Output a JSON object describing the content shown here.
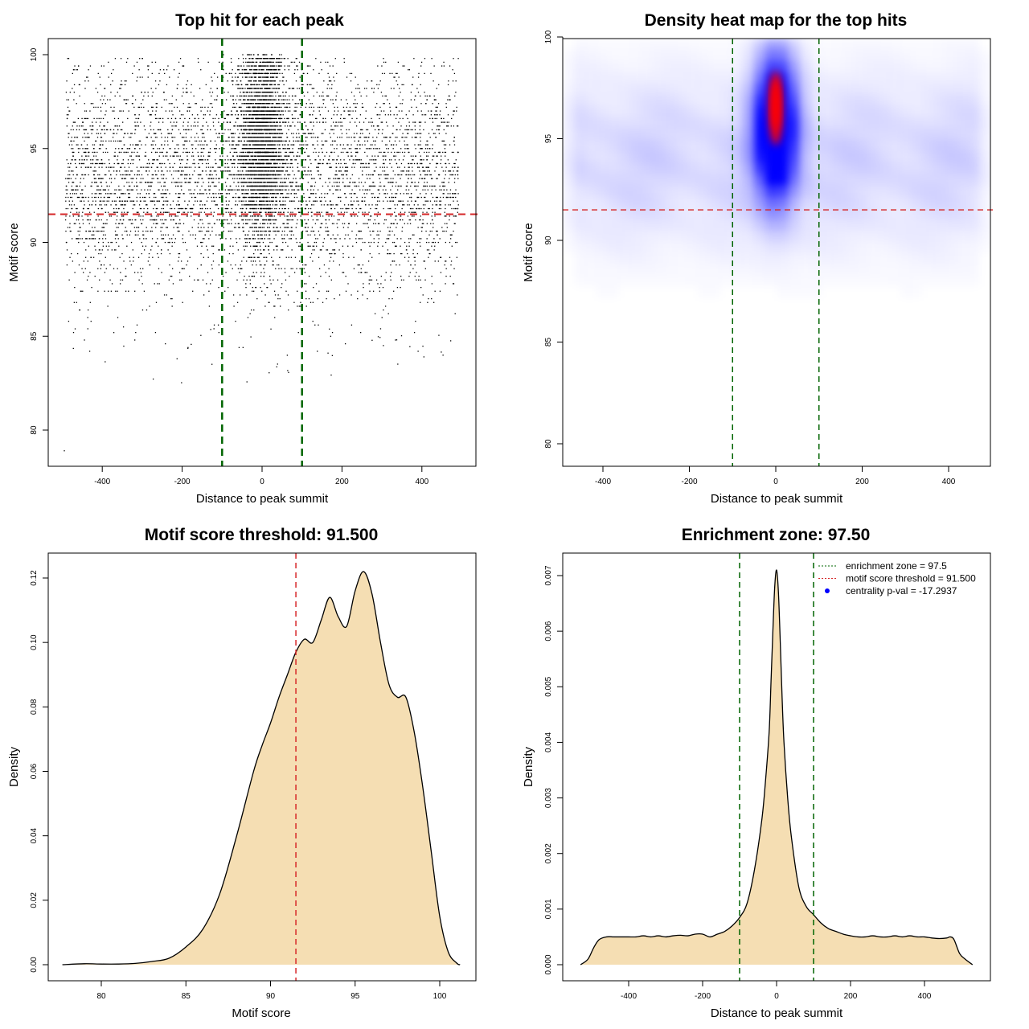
{
  "colors": {
    "points": "#000000",
    "threshold_line": "#d62728",
    "zone_line": "#006400",
    "density_fill": "#f5deb3",
    "density_line": "#000000",
    "heat_low": "#ffffff",
    "heat_mid": "#0000ff",
    "heat_high": "#ff0000",
    "legend_dot": "#0000ff"
  },
  "chart_data": [
    {
      "type": "scatter",
      "title": "Top hit for each peak",
      "xlabel": "Distance to peak summit",
      "ylabel": "Motif score",
      "xlim": [
        -500,
        500
      ],
      "ylim": [
        78,
        100
      ],
      "x_ticks": [
        -400,
        -200,
        0,
        200,
        400
      ],
      "y_ticks": [
        80,
        85,
        90,
        95,
        100
      ],
      "series_description_points": {
        "approx_count": 9000,
        "x_range": [
          -495,
          495
        ],
        "y_range": [
          78.9,
          100
        ],
        "central_cluster": {
          "x_center": 0,
          "x_sd": 35,
          "y_range": [
            88,
            100
          ]
        }
      },
      "reference_lines": {
        "hline": 91.5,
        "vlines": [
          -100,
          100
        ]
      },
      "grid": false
    },
    {
      "type": "heatmap",
      "title": "Density heat map for the top hits",
      "xlabel": "Distance to peak summit",
      "ylabel": "Motif score",
      "xlim": [
        -500,
        500
      ],
      "ylim": [
        79,
        100
      ],
      "x_ticks": [
        -400,
        -200,
        0,
        200,
        400
      ],
      "y_ticks": [
        80,
        85,
        90,
        95,
        100
      ],
      "peak": {
        "x": 0,
        "y": 96.5
      },
      "reference_lines": {
        "hline": 91.5,
        "vlines": [
          -100,
          100
        ]
      },
      "grid": false
    },
    {
      "type": "area",
      "title": "Motif score threshold: 91.500",
      "xlabel": "Motif score",
      "ylabel": "Density",
      "xlim": [
        77.5,
        101.5
      ],
      "ylim": [
        0,
        0.125
      ],
      "x_ticks": [
        80,
        85,
        90,
        95,
        100
      ],
      "y_ticks": [
        0.0,
        0.02,
        0.04,
        0.06,
        0.08,
        0.1,
        0.12
      ],
      "y_tick_labels": [
        "0.00",
        "0.02",
        "0.04",
        "0.06",
        "0.08",
        "0.10",
        "0.12"
      ],
      "x": [
        77.7,
        79,
        80,
        81,
        82,
        83,
        84,
        85,
        86,
        87,
        88,
        89,
        89.5,
        90,
        90.5,
        91,
        91.5,
        92,
        92.5,
        93,
        93.5,
        94,
        94.5,
        95,
        95.5,
        96,
        96.5,
        97,
        97.5,
        98,
        98.5,
        99,
        99.5,
        100,
        100.5,
        101,
        101.2
      ],
      "y": [
        0.0,
        0.0003,
        0.0002,
        0.0002,
        0.0004,
        0.001,
        0.002,
        0.0055,
        0.011,
        0.022,
        0.04,
        0.06,
        0.068,
        0.075,
        0.083,
        0.09,
        0.097,
        0.101,
        0.1,
        0.107,
        0.114,
        0.108,
        0.105,
        0.116,
        0.122,
        0.115,
        0.1,
        0.087,
        0.083,
        0.083,
        0.072,
        0.055,
        0.035,
        0.015,
        0.004,
        0.0005,
        0.0
      ],
      "reference_lines": {
        "vline": 91.5
      },
      "grid": false
    },
    {
      "type": "area",
      "title": "Enrichment zone: 97.50",
      "xlabel": "Distance to peak summit",
      "ylabel": "Density",
      "xlim": [
        -550,
        550
      ],
      "ylim": [
        0,
        0.0075
      ],
      "x_ticks": [
        -400,
        -200,
        0,
        200,
        400
      ],
      "y_ticks": [
        0.0,
        0.001,
        0.002,
        0.003,
        0.004,
        0.005,
        0.006,
        0.007
      ],
      "y_tick_labels": [
        "0.000",
        "0.001",
        "0.002",
        "0.003",
        "0.004",
        "0.005",
        "0.006",
        "0.007"
      ],
      "x": [
        -530,
        -510,
        -495,
        -480,
        -460,
        -440,
        -420,
        -400,
        -380,
        -360,
        -340,
        -320,
        -300,
        -280,
        -260,
        -240,
        -220,
        -200,
        -180,
        -160,
        -140,
        -120,
        -100,
        -80,
        -60,
        -40,
        -30,
        -20,
        -15,
        -10,
        -5,
        0,
        5,
        10,
        15,
        20,
        30,
        40,
        60,
        80,
        100,
        120,
        140,
        160,
        180,
        200,
        220,
        240,
        260,
        280,
        300,
        320,
        340,
        360,
        380,
        400,
        420,
        440,
        460,
        470,
        480,
        495,
        510,
        530
      ],
      "y": [
        0.0,
        0.0001,
        0.0003,
        0.00045,
        0.0005,
        0.0005,
        0.0005,
        0.0005,
        0.0005,
        0.00052,
        0.0005,
        0.00052,
        0.0005,
        0.00052,
        0.00053,
        0.00052,
        0.00055,
        0.00055,
        0.0005,
        0.00055,
        0.0006,
        0.0007,
        0.00085,
        0.0011,
        0.0017,
        0.0026,
        0.0033,
        0.0042,
        0.0051,
        0.006,
        0.0068,
        0.0071,
        0.0067,
        0.0058,
        0.0048,
        0.004,
        0.003,
        0.0023,
        0.0014,
        0.00105,
        0.0009,
        0.00075,
        0.00065,
        0.0006,
        0.00055,
        0.00052,
        0.0005,
        0.0005,
        0.00052,
        0.0005,
        0.0005,
        0.00052,
        0.0005,
        0.00052,
        0.0005,
        0.0005,
        0.00048,
        0.00047,
        0.00048,
        0.0005,
        0.00045,
        0.0002,
        0.0001,
        0.0
      ],
      "reference_lines": {
        "vlines": [
          -100,
          100
        ]
      },
      "legend": {
        "placement": "top-right",
        "items": [
          {
            "label": "enrichment zone = 97.5",
            "style": "dotted-line",
            "color": "#006400"
          },
          {
            "label": "motif score threshold = 91.500",
            "style": "dotted-line",
            "color": "#d62728"
          },
          {
            "label": "centrality p-val = -17.2937",
            "style": "dot",
            "color": "#0000ff"
          }
        ]
      },
      "grid": false
    }
  ]
}
